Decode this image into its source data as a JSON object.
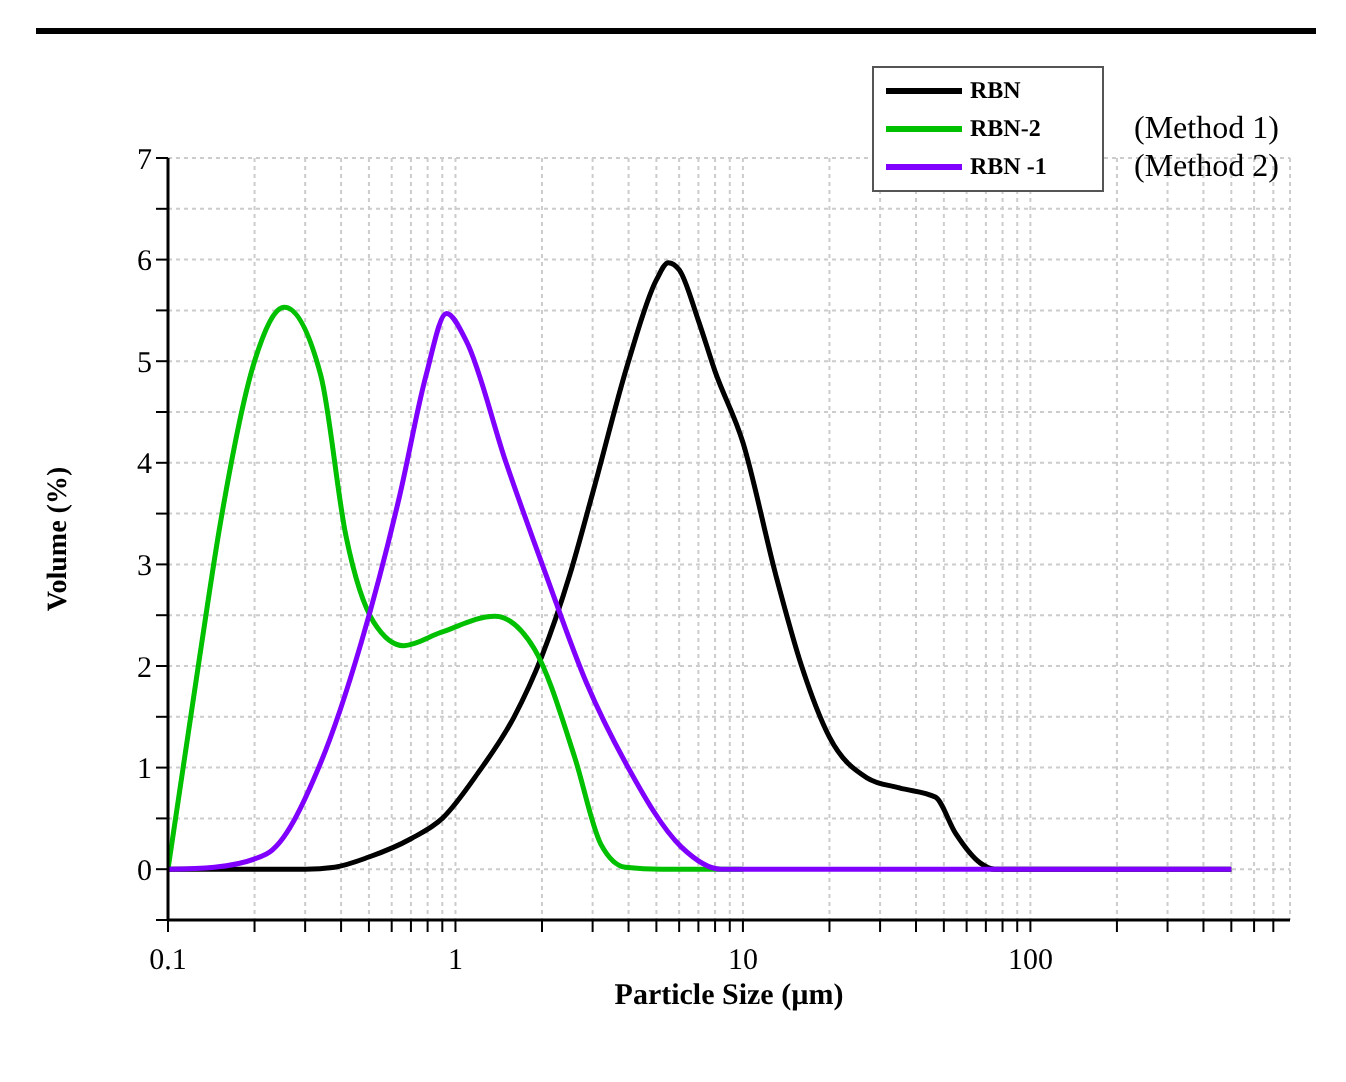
{
  "chart_data": {
    "type": "line",
    "xlabel": "Particle Size (µm)",
    "ylabel": "Volume (%)",
    "log": "x",
    "xlim": [
      0.1,
      800
    ],
    "ylim": [
      -0.5,
      7
    ],
    "xticks": [
      0.1,
      {
        "value": 0.2,
        "label": null
      },
      {
        "value": 0.3,
        "label": null
      },
      {
        "value": 0.4,
        "label": null
      },
      {
        "value": 0.5,
        "label": null
      },
      {
        "value": 0.6,
        "label": null
      },
      {
        "value": 0.7,
        "label": null
      },
      {
        "value": 0.8,
        "label": null
      },
      {
        "value": 0.9,
        "label": null
      },
      1,
      {
        "value": 2,
        "label": null
      },
      {
        "value": 3,
        "label": null
      },
      {
        "value": 4,
        "label": null
      },
      {
        "value": 5,
        "label": null
      },
      {
        "value": 6,
        "label": null
      },
      {
        "value": 7,
        "label": null
      },
      {
        "value": 8,
        "label": null
      },
      {
        "value": 9,
        "label": null
      },
      10,
      {
        "value": 20,
        "label": null
      },
      {
        "value": 30,
        "label": null
      },
      {
        "value": 40,
        "label": null
      },
      {
        "value": 50,
        "label": null
      },
      {
        "value": 60,
        "label": null
      },
      {
        "value": 70,
        "label": null
      },
      {
        "value": 80,
        "label": null
      },
      {
        "value": 90,
        "label": null
      },
      100,
      {
        "value": 200,
        "label": null
      },
      {
        "value": 300,
        "label": null
      },
      {
        "value": 400,
        "label": null
      },
      {
        "value": 500,
        "label": null
      },
      {
        "value": 600,
        "label": null
      },
      {
        "value": 700,
        "label": null
      }
    ],
    "yticks": [
      {
        "value": -0.5,
        "label": null
      },
      0,
      {
        "value": 0.5,
        "label": null
      },
      1,
      {
        "value": 1.5,
        "label": null
      },
      2,
      {
        "value": 2.5,
        "label": null
      },
      3,
      {
        "value": 3.5,
        "label": null
      },
      4,
      {
        "value": 4.5,
        "label": null
      },
      5,
      {
        "value": 5.5,
        "label": null
      },
      6,
      {
        "value": 6.5,
        "label": null
      },
      7
    ],
    "grid": true,
    "legend": "top right",
    "marker": "none",
    "line_style": "solid",
    "annotations": [
      "(Method 1)",
      "(Method 2)"
    ],
    "series": [
      {
        "name": "RBN",
        "color": "#000000",
        "x": [
          0.1,
          0.3,
          0.38,
          0.5,
          0.7,
          0.9,
          1.2,
          1.6,
          2,
          2.5,
          3,
          4,
          5,
          5.5,
          6,
          7,
          8,
          10,
          13,
          16,
          20,
          27,
          35,
          46.7,
          55,
          67,
          75,
          500
        ],
        "values": [
          0,
          0,
          0.02,
          0.12,
          0.3,
          0.5,
          0.95,
          1.5,
          2.1,
          2.9,
          3.7,
          5,
          5.8,
          5.97,
          5.9,
          5.4,
          4.9,
          4.2,
          2.9,
          2,
          1.3,
          0.9,
          0.8,
          0.71,
          0.35,
          0.06,
          0,
          0
        ]
      },
      {
        "name": "RBN-2",
        "color": "#00c000",
        "x": [
          0.1,
          0.129,
          0.152,
          0.2,
          0.254,
          0.34,
          0.416,
          0.52,
          0.66,
          0.89,
          1.37,
          1.88,
          2.6,
          3.2,
          3.9,
          5.2,
          10
        ],
        "values": [
          0,
          2.1,
          3.4,
          5,
          5.53,
          4.86,
          3.28,
          2.43,
          2.2,
          2.33,
          2.49,
          2.17,
          1.1,
          0.25,
          0.02,
          0,
          0
        ]
      },
      {
        "name": "RBN -1",
        "color": "#8000ff",
        "x": [
          0.1,
          0.145,
          0.22,
          0.34,
          0.47,
          0.64,
          0.79,
          0.93,
          1.09,
          1.5,
          2.07,
          2.85,
          3.9,
          6.1,
          8.4,
          500
        ],
        "values": [
          0,
          0.02,
          0.15,
          1.05,
          2.23,
          3.68,
          4.86,
          5.47,
          5.2,
          4,
          2.89,
          1.84,
          1.05,
          0.22,
          0,
          0
        ]
      }
    ]
  }
}
